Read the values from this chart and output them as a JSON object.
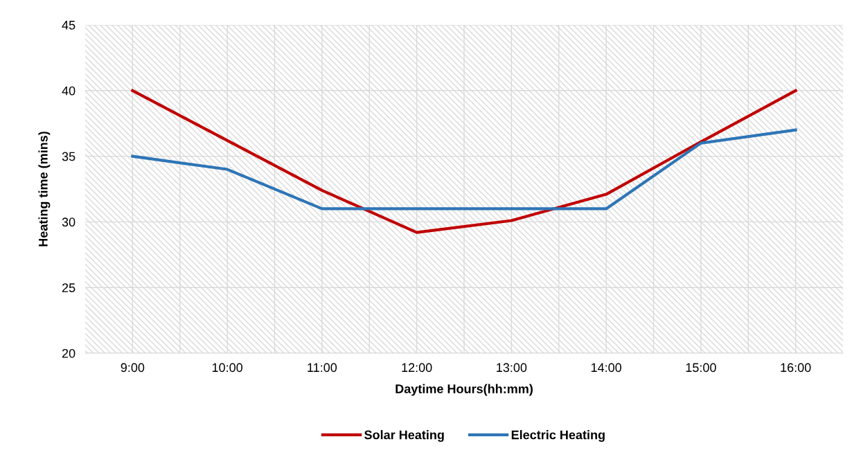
{
  "chart_data": {
    "type": "line",
    "xlabel": "Daytime Hours(hh:mm)",
    "ylabel": "Heating time (mins)",
    "categories": [
      "9:00",
      "10:00",
      "11:00",
      "12:00",
      "13:00",
      "14:00",
      "15:00",
      "16:00"
    ],
    "series": [
      {
        "name": "Solar Heating",
        "color": "#c00000",
        "values": [
          40,
          36.2,
          32.4,
          29.2,
          30.1,
          32.1,
          36.1,
          40
        ]
      },
      {
        "name": "Electric Heating",
        "color": "#2e75b6",
        "values": [
          35,
          34,
          31,
          31,
          31,
          31,
          36,
          37
        ]
      }
    ],
    "ylim": [
      20,
      45
    ],
    "yticks": [
      20,
      25,
      30,
      35,
      40,
      45
    ],
    "grid": true,
    "legend": "bottom",
    "marker": "none",
    "line_style": "solid"
  }
}
